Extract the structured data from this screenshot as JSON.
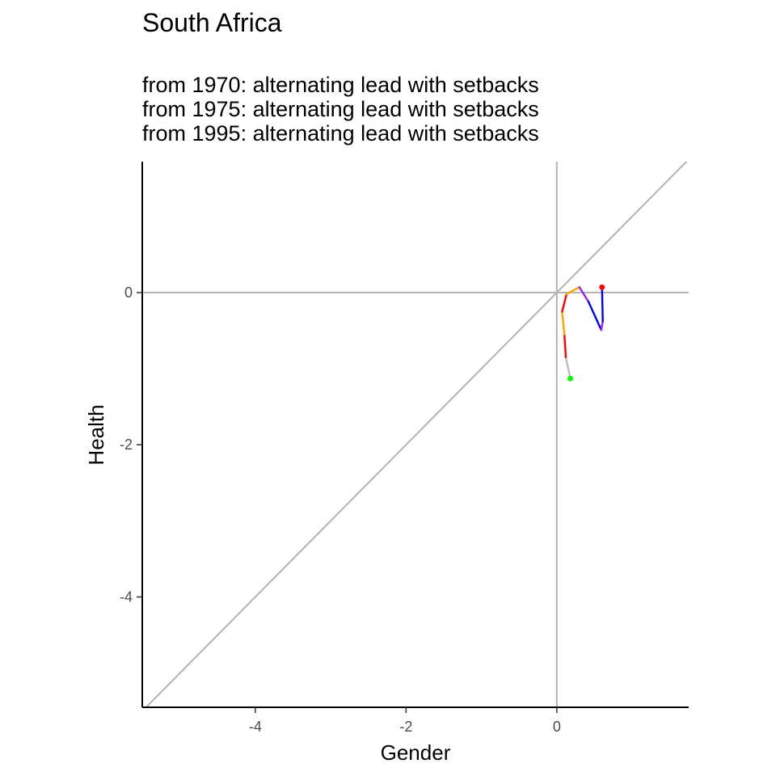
{
  "chart_data": {
    "type": "line",
    "title": "South Africa",
    "subtitle_lines": [
      "from 1970:  alternating lead with setbacks",
      "from 1975:  alternating lead with setbacks",
      "from 1995:  alternating lead with setbacks"
    ],
    "xlabel": "Gender",
    "ylabel": "Health",
    "xlim": [
      -5.5,
      1.75
    ],
    "ylim": [
      -5.45,
      1.72
    ],
    "x_ticks": [
      -4,
      -2,
      0
    ],
    "y_ticks": [
      -4,
      -2,
      0
    ],
    "x_tick_labels": [
      "-4",
      "-2",
      "0"
    ],
    "y_tick_labels": [
      "-4",
      "-2",
      "0"
    ],
    "grid": false,
    "reference_lines": {
      "hline_y": 0,
      "vline_x": 0,
      "diagonal": "y = x",
      "color": "#b3b3b3"
    },
    "series": [
      {
        "color": "#bebebe",
        "points": [
          [
            0.18,
            -1.13
          ],
          [
            0.12,
            -0.85
          ]
        ]
      },
      {
        "color": "#ff0000",
        "points": [
          [
            0.12,
            -0.85
          ],
          [
            0.1,
            -0.55
          ]
        ]
      },
      {
        "color": "#ffa500",
        "points": [
          [
            0.1,
            -0.55
          ],
          [
            0.07,
            -0.25
          ]
        ]
      },
      {
        "color": "#ff0000",
        "points": [
          [
            0.07,
            -0.25
          ],
          [
            0.13,
            -0.02
          ]
        ]
      },
      {
        "color": "#ffa500",
        "points": [
          [
            0.13,
            -0.02
          ],
          [
            0.3,
            0.07
          ]
        ]
      },
      {
        "color": "#a020f0",
        "points": [
          [
            0.3,
            0.07
          ],
          [
            0.42,
            -0.12
          ]
        ]
      },
      {
        "color": "#0000ff",
        "points": [
          [
            0.42,
            -0.12
          ],
          [
            0.59,
            -0.49
          ]
        ]
      },
      {
        "color": "#a020f0",
        "points": [
          [
            0.59,
            -0.49
          ],
          [
            0.61,
            -0.38
          ]
        ]
      },
      {
        "color": "#0000ff",
        "points": [
          [
            0.61,
            -0.38
          ],
          [
            0.6,
            0.07
          ]
        ]
      }
    ],
    "start_point": {
      "x": 0.18,
      "y": -1.13,
      "color": "#00ff00"
    },
    "end_point": {
      "x": 0.6,
      "y": 0.07,
      "color": "#ff0000"
    }
  }
}
